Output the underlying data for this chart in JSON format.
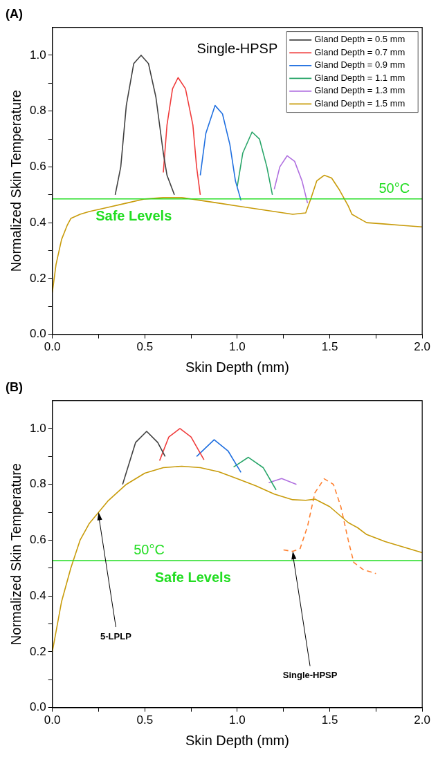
{
  "chart_data": [
    {
      "type": "line",
      "title": "(A)",
      "subtitle": "Single-HPSP",
      "xlabel": "Skin Depth (mm)",
      "ylabel": "Normalized Skin Temperature",
      "xlim": [
        0,
        2
      ],
      "ylim": [
        0,
        1.1
      ],
      "xticks": [
        {
          "value": 0,
          "label": "0.0"
        },
        {
          "value": 0.25,
          "label": null
        },
        {
          "value": 0.5,
          "label": "0.5"
        },
        {
          "value": 0.75,
          "label": null
        },
        {
          "value": 1,
          "label": "1.0"
        },
        {
          "value": 1.25,
          "label": null
        },
        {
          "value": 1.5,
          "label": "1.5"
        },
        {
          "value": 1.75,
          "label": null
        },
        {
          "value": 2,
          "label": "2.0"
        }
      ],
      "yticks": [
        {
          "value": 0,
          "label": "0.0"
        },
        {
          "value": 0.1,
          "label": null
        },
        {
          "value": 0.2,
          "label": "0.2"
        },
        {
          "value": 0.3,
          "label": null
        },
        {
          "value": 0.4,
          "label": "0.4"
        },
        {
          "value": 0.5,
          "label": null
        },
        {
          "value": 0.6,
          "label": "0.6"
        },
        {
          "value": 0.7,
          "label": null
        },
        {
          "value": 0.8,
          "label": "0.8"
        },
        {
          "value": 0.9,
          "label": null
        },
        {
          "value": 1,
          "label": "1.0"
        }
      ],
      "grid": false,
      "legend": "top right",
      "marker": "none",
      "line_style": "solid",
      "ref_lines": [
        {
          "axis": "y",
          "value": 0.485,
          "label": "50°C",
          "color": "#22dd22"
        }
      ],
      "annotations": [
        "Safe Levels"
      ],
      "series": [
        {
          "name": "Gland Depth = 0.5 mm",
          "color": "#404040",
          "x": [
            0.34,
            0.37,
            0.4,
            0.44,
            0.48,
            0.52,
            0.56,
            0.6,
            0.62,
            0.66
          ],
          "values": [
            0.5,
            0.6,
            0.82,
            0.97,
            1.0,
            0.97,
            0.85,
            0.65,
            0.57,
            0.5
          ]
        },
        {
          "name": "Gland Depth = 0.7 mm",
          "color": "#f03c3c",
          "x": [
            0.6,
            0.62,
            0.65,
            0.68,
            0.72,
            0.76,
            0.78,
            0.8
          ],
          "values": [
            0.58,
            0.75,
            0.88,
            0.92,
            0.88,
            0.75,
            0.6,
            0.5
          ]
        },
        {
          "name": "Gland Depth = 0.9 mm",
          "color": "#1f6fe0",
          "x": [
            0.8,
            0.83,
            0.88,
            0.92,
            0.96,
            0.99,
            1.02
          ],
          "values": [
            0.57,
            0.72,
            0.82,
            0.79,
            0.68,
            0.55,
            0.48
          ]
        },
        {
          "name": "Gland Depth = 1.1 mm",
          "color": "#2aa66a",
          "x": [
            1.0,
            1.03,
            1.08,
            1.12,
            1.16,
            1.19
          ],
          "values": [
            0.53,
            0.65,
            0.725,
            0.7,
            0.6,
            0.5
          ]
        },
        {
          "name": "Gland Depth = 1.3 mm",
          "color": "#b070e0",
          "x": [
            1.2,
            1.23,
            1.27,
            1.31,
            1.35,
            1.38
          ],
          "values": [
            0.52,
            0.6,
            0.64,
            0.62,
            0.55,
            0.47
          ]
        },
        {
          "name": "Gland Depth = 1.5 mm",
          "color": "#c89b0a",
          "x": [
            0,
            0.02,
            0.05,
            0.08,
            0.1,
            0.15,
            0.2,
            0.3,
            0.4,
            0.5,
            0.6,
            0.7,
            0.8,
            0.9,
            1.0,
            1.1,
            1.2,
            1.3,
            1.37,
            1.4,
            1.43,
            1.47,
            1.51,
            1.55,
            1.6,
            1.62,
            1.66,
            1.7,
            1.8,
            1.9,
            2.0
          ],
          "values": [
            0.15,
            0.25,
            0.34,
            0.39,
            0.415,
            0.43,
            0.44,
            0.455,
            0.47,
            0.485,
            0.49,
            0.49,
            0.48,
            0.47,
            0.46,
            0.45,
            0.44,
            0.43,
            0.435,
            0.49,
            0.55,
            0.57,
            0.56,
            0.52,
            0.46,
            0.43,
            0.415,
            0.4,
            0.395,
            0.39,
            0.385
          ]
        }
      ]
    },
    {
      "type": "line",
      "title": "(B)",
      "xlabel": "Skin Depth (mm)",
      "ylabel": "Normalized Skin Temperature",
      "xlim": [
        0,
        2
      ],
      "ylim": [
        0,
        1.1
      ],
      "xticks": [
        {
          "value": 0,
          "label": "0.0"
        },
        {
          "value": 0.25,
          "label": null
        },
        {
          "value": 0.5,
          "label": "0.5"
        },
        {
          "value": 0.75,
          "label": null
        },
        {
          "value": 1,
          "label": "1.0"
        },
        {
          "value": 1.25,
          "label": null
        },
        {
          "value": 1.5,
          "label": "1.5"
        },
        {
          "value": 1.75,
          "label": null
        },
        {
          "value": 2,
          "label": "2.0"
        }
      ],
      "yticks": [
        {
          "value": 0,
          "label": "0.0"
        },
        {
          "value": 0.1,
          "label": null
        },
        {
          "value": 0.2,
          "label": "0.2"
        },
        {
          "value": 0.3,
          "label": null
        },
        {
          "value": 0.4,
          "label": "0.4"
        },
        {
          "value": 0.5,
          "label": null
        },
        {
          "value": 0.6,
          "label": "0.6"
        },
        {
          "value": 0.7,
          "label": null
        },
        {
          "value": 0.8,
          "label": "0.8"
        },
        {
          "value": 0.9,
          "label": null
        },
        {
          "value": 1,
          "label": "1.0"
        }
      ],
      "grid": false,
      "marker": "none",
      "ref_lines": [
        {
          "axis": "y",
          "value": 0.527,
          "label": "50°C",
          "color": "#22dd22"
        }
      ],
      "annotations": [
        "Safe Levels",
        {
          "text": "5-LPLP",
          "x": 0.25,
          "y": 0.7
        },
        {
          "text": "Single-HPSP",
          "x": 1.3,
          "y": 0.56
        }
      ],
      "series": [
        {
          "color": "#404040",
          "x": [
            0.38,
            0.45,
            0.51,
            0.57,
            0.61
          ],
          "values": [
            0.8,
            0.95,
            0.99,
            0.95,
            0.9
          ]
        },
        {
          "color": "#f03c3c",
          "x": [
            0.58,
            0.63,
            0.69,
            0.75,
            0.82
          ],
          "values": [
            0.885,
            0.97,
            1.0,
            0.97,
            0.888
          ]
        },
        {
          "color": "#1f6fe0",
          "x": [
            0.78,
            0.875,
            0.95,
            1.02
          ],
          "values": [
            0.9,
            0.96,
            0.92,
            0.843
          ]
        },
        {
          "color": "#2aa66a",
          "x": [
            0.98,
            1.06,
            1.14,
            1.21
          ],
          "values": [
            0.862,
            0.897,
            0.86,
            0.78
          ]
        },
        {
          "color": "#b070e0",
          "x": [
            1.17,
            1.24,
            1.32
          ],
          "values": [
            0.806,
            0.821,
            0.8
          ]
        },
        {
          "color": "#c89b0a",
          "x": [
            0,
            0.05,
            0.1,
            0.15,
            0.2,
            0.3,
            0.4,
            0.5,
            0.6,
            0.7,
            0.8,
            0.9,
            1.0,
            1.1,
            1.2,
            1.3,
            1.37,
            1.42,
            1.5,
            1.6,
            1.65,
            1.7,
            1.8,
            1.9,
            2.0
          ],
          "values": [
            0.2,
            0.38,
            0.5,
            0.6,
            0.66,
            0.74,
            0.8,
            0.84,
            0.86,
            0.865,
            0.86,
            0.845,
            0.82,
            0.795,
            0.765,
            0.745,
            0.743,
            0.747,
            0.72,
            0.663,
            0.645,
            0.62,
            0.595,
            0.575,
            0.555
          ]
        },
        {
          "color": "#ff8030",
          "line_style": "dashed",
          "x": [
            1.25,
            1.3,
            1.34,
            1.38,
            1.42,
            1.47,
            1.52,
            1.56,
            1.6,
            1.63,
            1.68,
            1.75
          ],
          "values": [
            0.565,
            0.56,
            0.57,
            0.65,
            0.77,
            0.82,
            0.8,
            0.72,
            0.6,
            0.52,
            0.495,
            0.48
          ]
        }
      ]
    }
  ]
}
